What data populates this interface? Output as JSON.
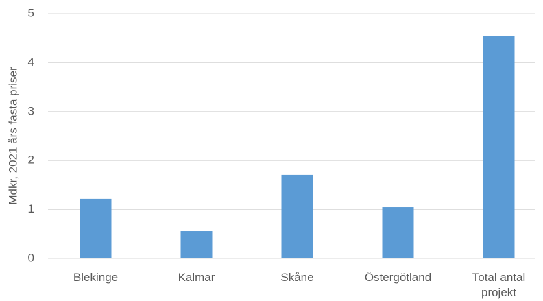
{
  "chart_data": {
    "type": "bar",
    "y_label": "Mdkr, 2021 års fasta priser",
    "categories": [
      "Blekinge",
      "Kalmar",
      "Skåne",
      "Östergötland",
      "Total antal projekt"
    ],
    "values": [
      1.22,
      0.56,
      1.71,
      1.05,
      4.55
    ],
    "color": "#5b9bd5",
    "ylim": [
      0,
      5
    ],
    "yticks": [
      0,
      1,
      2,
      3,
      4,
      5
    ],
    "grid": true
  }
}
